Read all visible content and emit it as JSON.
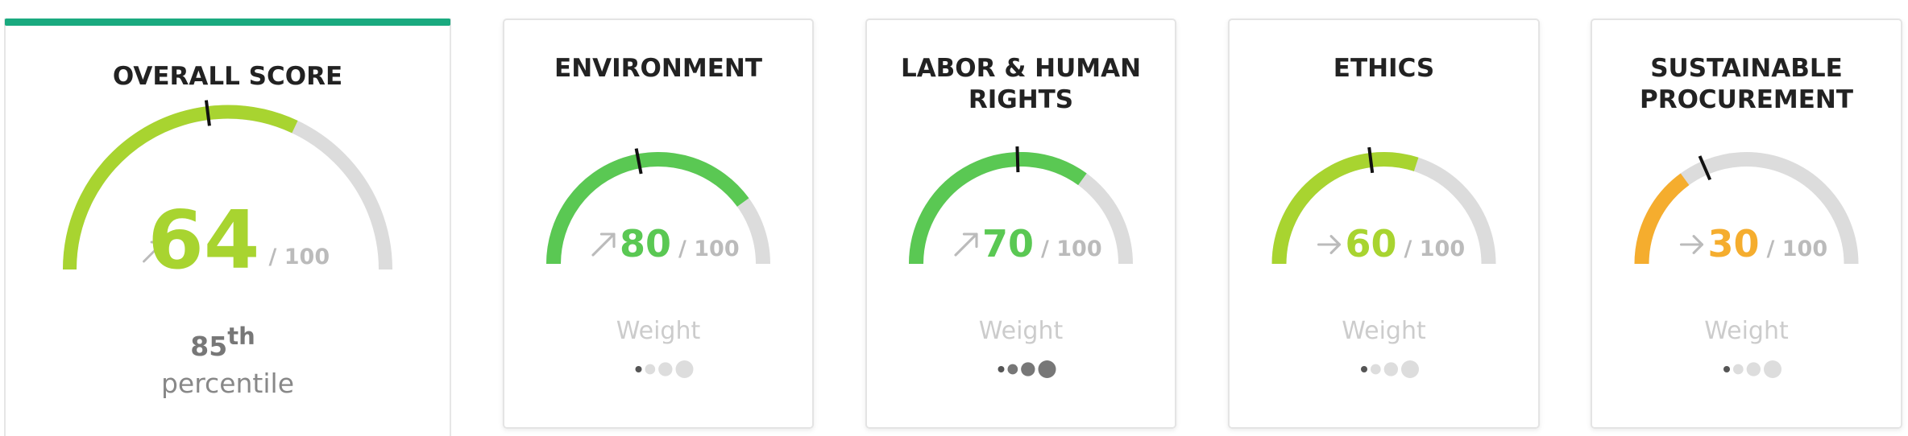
{
  "cards": [
    {
      "title": "OVERALL SCORE",
      "score": 64,
      "max": 100,
      "max_label": "/ 100",
      "marker": 46,
      "trend": "up",
      "color": "#a8d430",
      "percentile": "85",
      "percentile_suffix": "th",
      "percentile_label": "percentile"
    },
    {
      "title": [
        "ENVIRONMENT"
      ],
      "score": 80,
      "max": 100,
      "max_label": "/ 100",
      "marker": 44,
      "trend": "up",
      "color": "#5ac853",
      "weight_label": "Weight",
      "weight": 1,
      "weight_max": 4
    },
    {
      "title": [
        "LABOR & HUMAN",
        "RIGHTS"
      ],
      "score": 70,
      "max": 100,
      "max_label": "/ 100",
      "marker": 49,
      "trend": "up",
      "color": "#5ac853",
      "weight_label": "Weight",
      "weight": 4,
      "weight_max": 4
    },
    {
      "title": [
        "ETHICS"
      ],
      "score": 60,
      "max": 100,
      "max_label": "/ 100",
      "marker": 46,
      "trend": "flat",
      "color": "#a8d430",
      "weight_label": "Weight",
      "weight": 1,
      "weight_max": 4
    },
    {
      "title": [
        "SUSTAINABLE",
        "PROCUREMENT"
      ],
      "score": 30,
      "max": 100,
      "max_label": "/ 100",
      "marker": 37,
      "trend": "flat",
      "color": "#f5ad2e",
      "weight_label": "Weight",
      "weight": 1,
      "weight_max": 4
    }
  ]
}
